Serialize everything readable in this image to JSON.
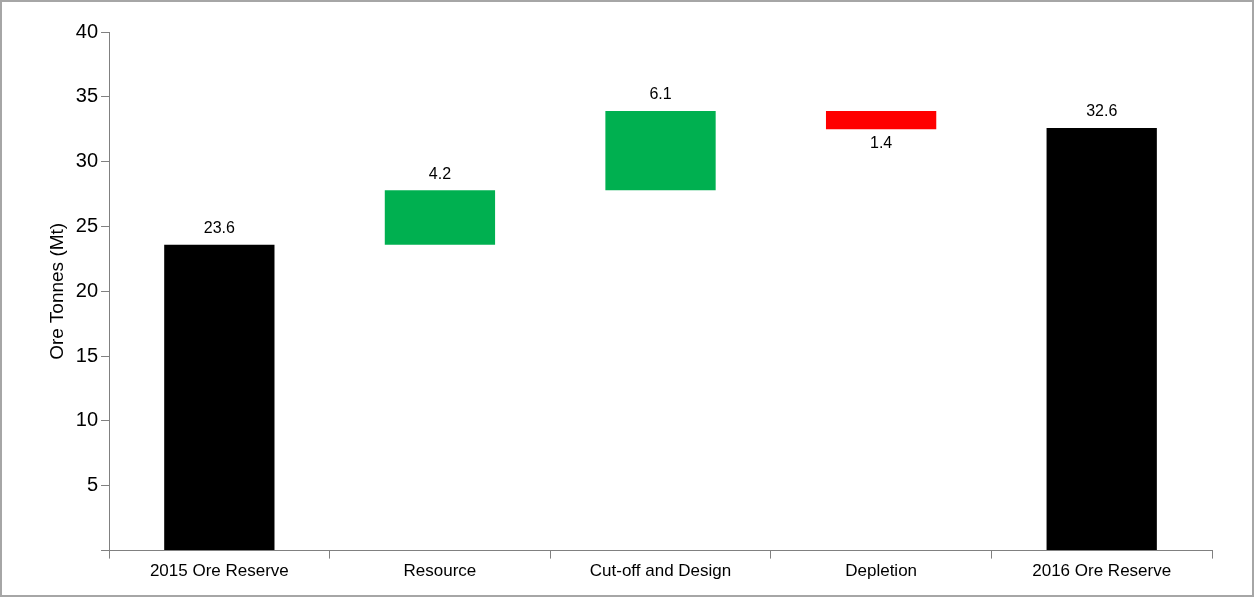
{
  "chart_data": {
    "type": "bar",
    "ylabel": "Ore Tonnes (Mt)",
    "categories": [
      "2015 Ore Reserve",
      "Resource",
      "Cut-off and Design",
      "Depletion",
      "2016 Ore Reserve"
    ],
    "values": [
      23.6,
      4.2,
      6.1,
      1.4,
      32.6
    ],
    "base": [
      0,
      23.6,
      27.8,
      32.5,
      0
    ],
    "colors": [
      "#000000",
      "#00b050",
      "#00b050",
      "#ff0000",
      "#000000"
    ],
    "ylim": [
      0,
      40
    ],
    "yticks": [
      {
        "value": 0,
        "label": null
      },
      5,
      10,
      15,
      20,
      25,
      30,
      35,
      40
    ],
    "grid": false,
    "legend": false,
    "data_labels": true
  }
}
